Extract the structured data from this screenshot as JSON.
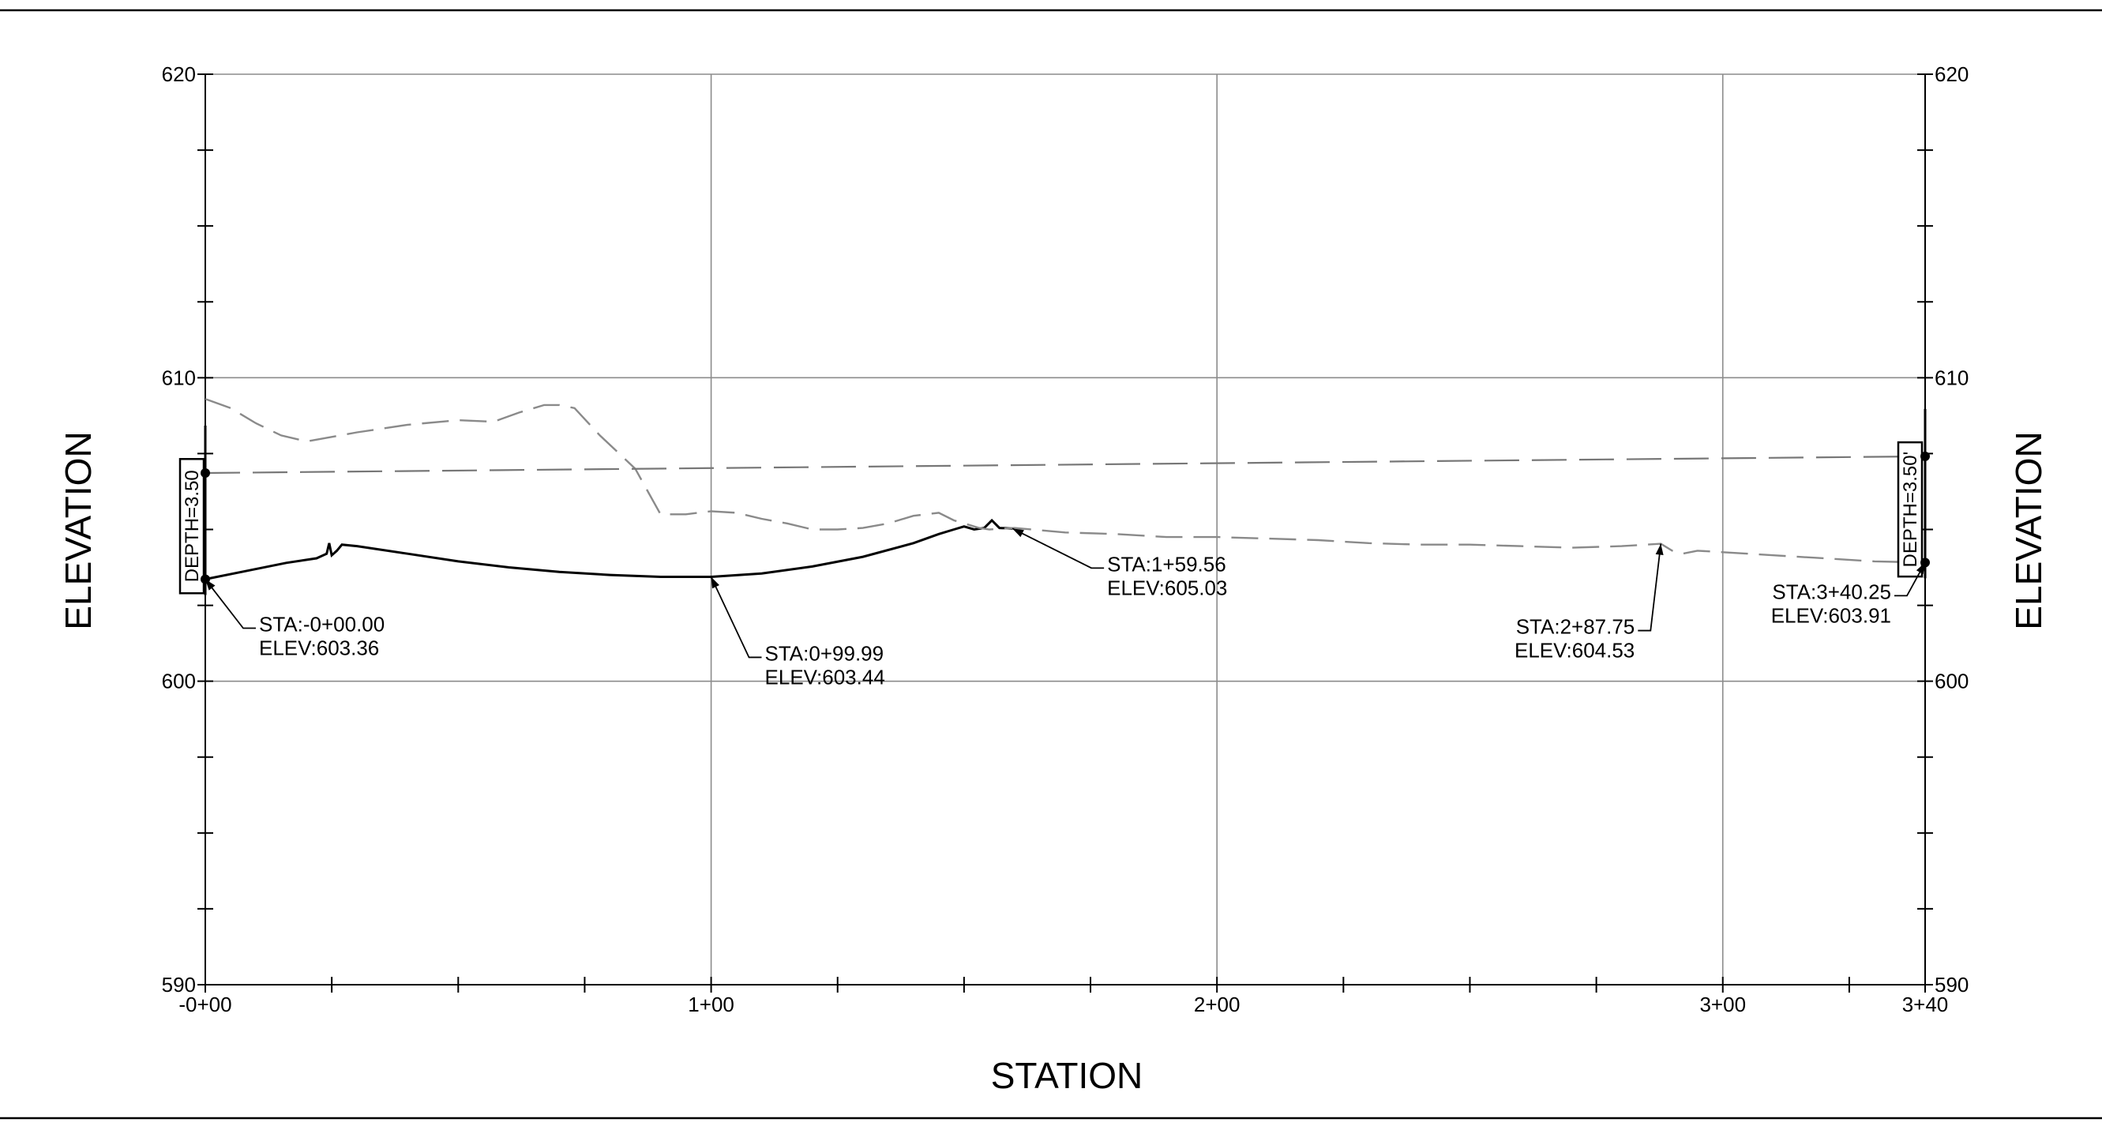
{
  "chart_data": {
    "type": "line",
    "title": "",
    "xlabel": "STATION",
    "ylabel_left": "ELEVATION",
    "ylabel_right": "ELEVATION",
    "xlim": [
      0,
      340
    ],
    "ylim": [
      590,
      620
    ],
    "grid": true,
    "x_ticks": [
      {
        "value": 0,
        "label": "-0+00"
      },
      {
        "value": 100,
        "label": "1+00"
      },
      {
        "value": 200,
        "label": "2+00"
      },
      {
        "value": 300,
        "label": "3+00"
      },
      {
        "value": 340,
        "label": "3+40"
      }
    ],
    "y_ticks_left": [
      {
        "value": 620,
        "label": "620"
      },
      {
        "value": 610,
        "label": "610"
      },
      {
        "value": 600,
        "label": "600"
      },
      {
        "value": 590,
        "label": "590"
      }
    ],
    "y_ticks_right": [
      {
        "value": 620,
        "label": "620"
      },
      {
        "value": 610,
        "label": "610"
      },
      {
        "value": 600,
        "label": "600"
      },
      {
        "value": 590,
        "label": "590"
      }
    ],
    "series": [
      {
        "style": "solid",
        "x": [
          0,
          8,
          16,
          22,
          24,
          24.5,
          25,
          26,
          27,
          30,
          40,
          50,
          60,
          70,
          80,
          90,
          100,
          110,
          120,
          130,
          140,
          145,
          148,
          150,
          152,
          154,
          155.5,
          157,
          159.56
        ],
        "y": [
          603.36,
          603.63,
          603.9,
          604.05,
          604.2,
          604.55,
          604.15,
          604.3,
          604.5,
          604.45,
          604.2,
          603.95,
          603.75,
          603.6,
          603.5,
          603.44,
          603.44,
          603.55,
          603.78,
          604.1,
          604.55,
          604.85,
          605.0,
          605.1,
          605.0,
          605.05,
          605.3,
          605.05,
          605.03
        ]
      },
      {
        "style": "dashed",
        "x": [
          0,
          5,
          10,
          15,
          20,
          30,
          40,
          50,
          57,
          62,
          67,
          70,
          73,
          78,
          85,
          90,
          95,
          100,
          105,
          110,
          115,
          120,
          125,
          130,
          135,
          140,
          145,
          148,
          150,
          153,
          155,
          160,
          170,
          180,
          190,
          200,
          210,
          220,
          230,
          240,
          250,
          260,
          270,
          280,
          285,
          287.75,
          290,
          292,
          295,
          300,
          310,
          320,
          330,
          340
        ],
        "y": [
          609.3,
          609.0,
          608.5,
          608.1,
          607.9,
          608.2,
          608.45,
          608.6,
          608.55,
          608.85,
          609.1,
          609.1,
          609.0,
          608.1,
          607.0,
          605.5,
          605.5,
          605.6,
          605.55,
          605.35,
          605.2,
          605.0,
          605.0,
          605.05,
          605.2,
          605.45,
          605.55,
          605.3,
          605.2,
          605.05,
          605.0,
          605.05,
          604.9,
          604.85,
          604.75,
          604.75,
          604.7,
          604.65,
          604.55,
          604.5,
          604.5,
          604.45,
          604.4,
          604.45,
          604.5,
          604.53,
          604.3,
          604.2,
          604.3,
          604.25,
          604.15,
          604.05,
          603.95,
          603.91
        ]
      },
      {
        "style": "long-dashed",
        "x": [
          0,
          340
        ],
        "y": [
          606.86,
          607.41
        ]
      }
    ],
    "annotations": [
      {
        "station": 0,
        "elev": 603.36,
        "line1": "STA:-0+00.00",
        "line2": "ELEV:603.36"
      },
      {
        "station": 99.99,
        "elev": 603.44,
        "line1": "STA:0+99.99",
        "line2": "ELEV:603.44"
      },
      {
        "station": 159.56,
        "elev": 605.03,
        "line1": "STA:1+59.56",
        "line2": "ELEV:605.03"
      },
      {
        "station": 287.75,
        "elev": 604.53,
        "line1": "STA:2+87.75",
        "line2": "ELEV:604.53"
      },
      {
        "station": 340.25,
        "elev": 603.91,
        "line1": "STA:3+40.25",
        "line2": "ELEV:603.91"
      }
    ],
    "depth_labels": [
      {
        "station": 0,
        "text": "DEPTH=3.50",
        "bottom_elev": 603.36,
        "top_elev": 606.86
      },
      {
        "station": 340,
        "text": "DEPTH=3.50'",
        "bottom_elev": 603.91,
        "top_elev": 607.41
      }
    ]
  }
}
